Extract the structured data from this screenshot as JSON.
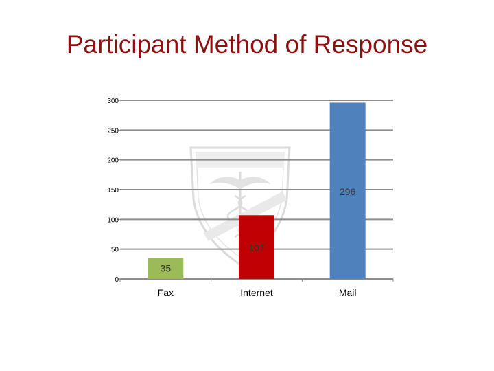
{
  "slide": {
    "title": "Participant Method of Response"
  },
  "chart_data": {
    "type": "bar",
    "categories": [
      "Fax",
      "Internet",
      "Mail"
    ],
    "values": [
      35,
      107,
      296
    ],
    "data_labels": [
      "35",
      "107",
      "296"
    ],
    "ylim": [
      0,
      300
    ],
    "yticks": [
      0,
      50,
      100,
      150,
      200,
      250,
      300
    ],
    "grid": true,
    "legend": "none",
    "colors": [
      "#9bbb59",
      "#c00000",
      "#4f81bd"
    ],
    "gridline_color": "#8c8c8c",
    "background_logo": "medical-caduceus-shield-watermark"
  }
}
